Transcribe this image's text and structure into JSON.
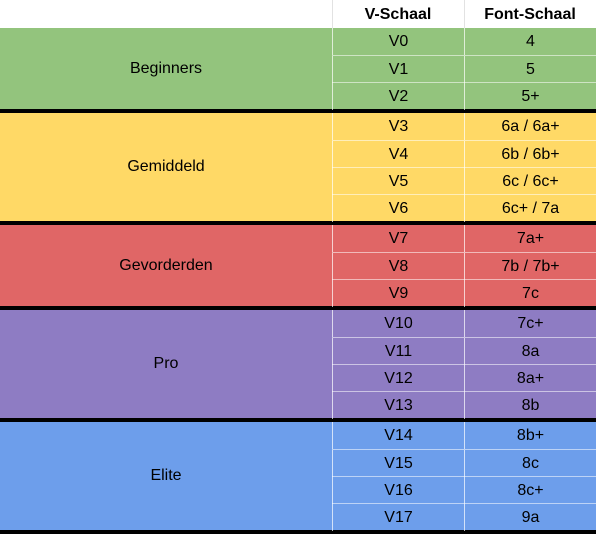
{
  "header": {
    "v_scale": "V-Schaal",
    "font_scale": "Font-Schaal"
  },
  "groups": [
    {
      "name": "Beginners",
      "color": "#93c47d",
      "rows": [
        {
          "v": "V0",
          "font": "4"
        },
        {
          "v": "V1",
          "font": "5"
        },
        {
          "v": "V2",
          "font": "5+"
        }
      ]
    },
    {
      "name": "Gemiddeld",
      "color": "#ffd966",
      "rows": [
        {
          "v": "V3",
          "font": "6a / 6a+"
        },
        {
          "v": "V4",
          "font": "6b / 6b+"
        },
        {
          "v": "V5",
          "font": "6c / 6c+"
        },
        {
          "v": "V6",
          "font": "6c+ / 7a"
        }
      ]
    },
    {
      "name": "Gevorderden",
      "color": "#e06666",
      "rows": [
        {
          "v": "V7",
          "font": "7a+"
        },
        {
          "v": "V8",
          "font": "7b / 7b+"
        },
        {
          "v": "V9",
          "font": "7c"
        }
      ]
    },
    {
      "name": "Pro",
      "color": "#8e7cc3",
      "rows": [
        {
          "v": "V10",
          "font": "7c+"
        },
        {
          "v": "V11",
          "font": "8a"
        },
        {
          "v": "V12",
          "font": "8a+"
        },
        {
          "v": "V13",
          "font": "8b"
        }
      ]
    },
    {
      "name": "Elite",
      "color": "#6d9eeb",
      "rows": [
        {
          "v": "V14",
          "font": "8b+"
        },
        {
          "v": "V15",
          "font": "8c"
        },
        {
          "v": "V16",
          "font": "8c+"
        },
        {
          "v": "V17",
          "font": "9a"
        }
      ]
    }
  ]
}
